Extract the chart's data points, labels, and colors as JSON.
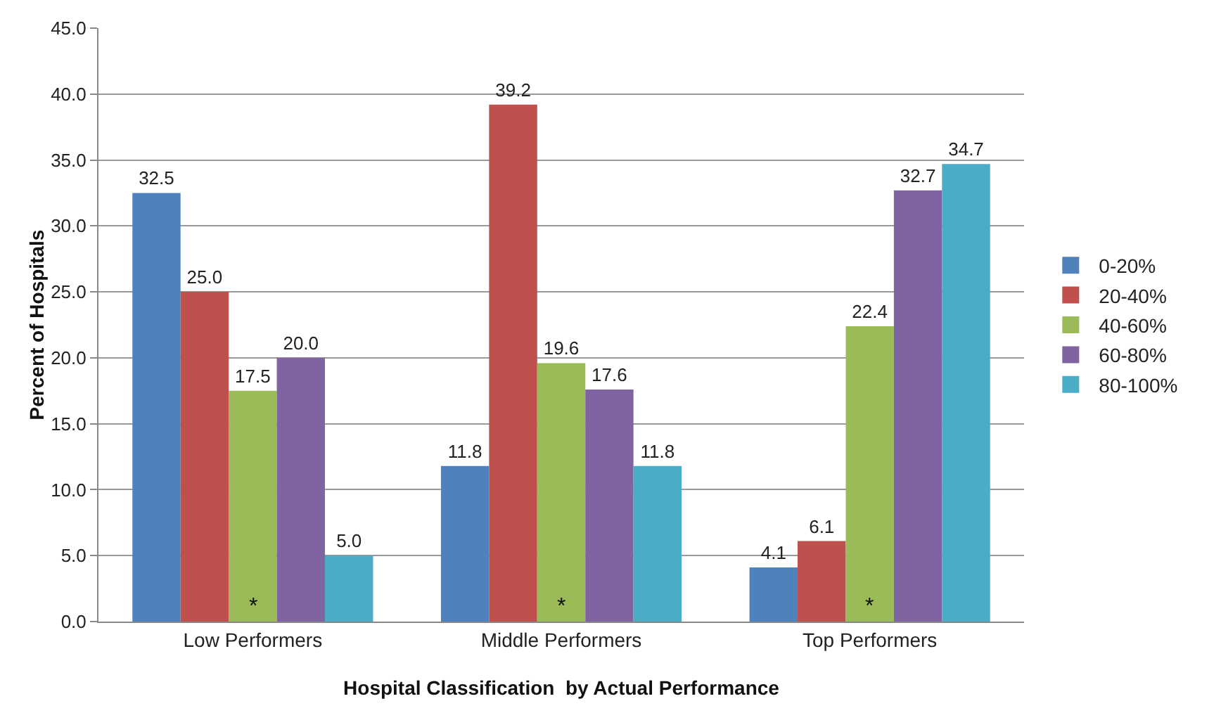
{
  "chart_data": {
    "type": "bar",
    "xlabel": "Hospital Classification  by Actual Performance",
    "ylabel": "Percent of Hospitals",
    "categories": [
      "Low Performers",
      "Middle Performers",
      "Top Performers"
    ],
    "series": [
      {
        "name": "0-20%",
        "color": "#4f81bd",
        "values": [
          32.5,
          11.8,
          4.1
        ],
        "value_labels": [
          "32.5",
          "11.8",
          "4.1"
        ]
      },
      {
        "name": "20-40%",
        "color": "#c0504d",
        "values": [
          25.0,
          39.2,
          6.1
        ],
        "value_labels": [
          "25.0",
          "39.2",
          "6.1"
        ]
      },
      {
        "name": "40-60%",
        "color": "#9bbb59",
        "values": [
          17.5,
          19.6,
          22.4
        ],
        "value_labels": [
          "17.5",
          "19.6",
          "22.4"
        ]
      },
      {
        "name": "60-80%",
        "color": "#8064a2",
        "values": [
          20.0,
          17.6,
          32.7
        ],
        "value_labels": [
          "20.0",
          "17.6",
          "32.7"
        ]
      },
      {
        "name": "80-100%",
        "color": "#4bacc6",
        "values": [
          5.0,
          11.8,
          34.7
        ],
        "value_labels": [
          "5.0",
          "11.8",
          "34.7"
        ]
      }
    ],
    "ylim": [
      0,
      45
    ],
    "yticks": [
      {
        "value": 0,
        "label": "0.0"
      },
      {
        "value": 5,
        "label": "5.0"
      },
      {
        "value": 10,
        "label": "10.0"
      },
      {
        "value": 15,
        "label": "15.0"
      },
      {
        "value": 20,
        "label": "20.0"
      },
      {
        "value": 25,
        "label": "25.0"
      },
      {
        "value": 30,
        "label": "30.0"
      },
      {
        "value": 35,
        "label": "35.0"
      },
      {
        "value": 40,
        "label": "40.0"
      },
      {
        "value": 45,
        "label": "45.0"
      }
    ],
    "grid": "y",
    "legend": "right",
    "annotations": [
      {
        "text": "*",
        "x": "Low Performers",
        "y": 0
      },
      {
        "text": "*",
        "x": "Middle Performers",
        "y": 0
      },
      {
        "text": "*",
        "x": "Top Performers",
        "y": 0
      }
    ]
  }
}
